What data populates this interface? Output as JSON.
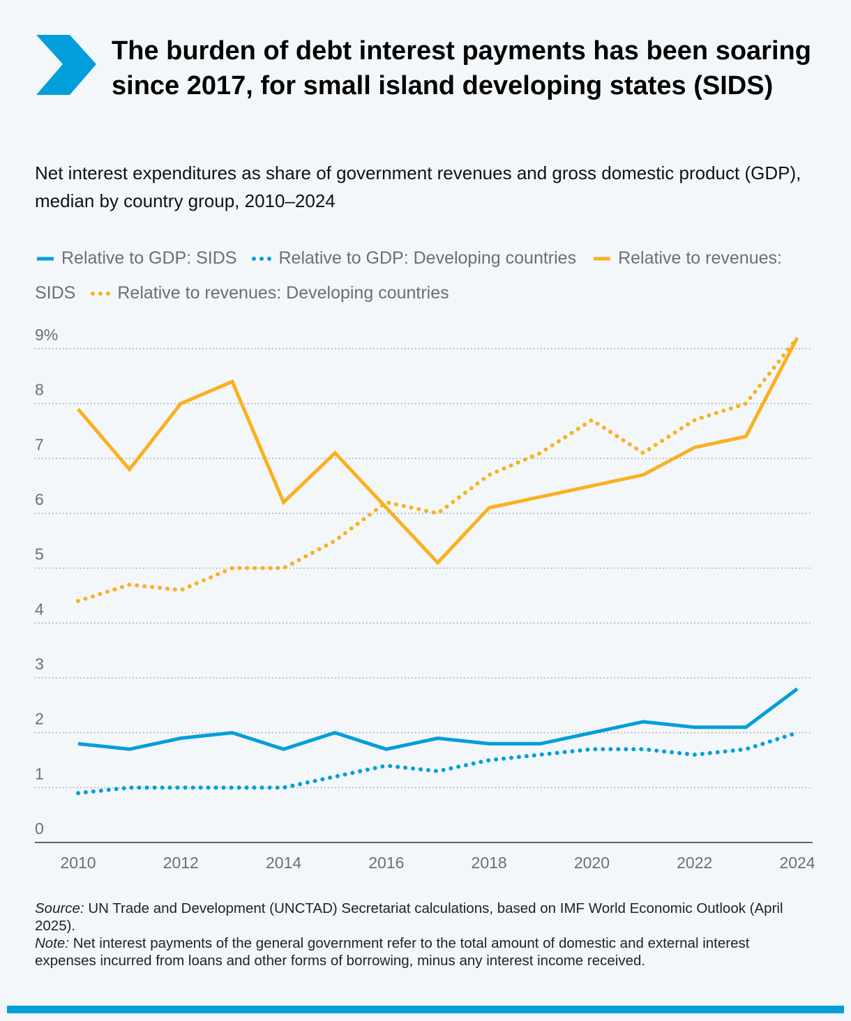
{
  "chart_data": {
    "type": "line",
    "title": "The burden of debt interest payments has been soaring since 2017, for small island developing states (SIDS)",
    "subtitle": "Net interest expenditures as share of government revenues and gross domestic product (GDP), median by country group, 2010–2024",
    "x": [
      2010,
      2011,
      2012,
      2013,
      2014,
      2015,
      2016,
      2017,
      2018,
      2019,
      2020,
      2021,
      2022,
      2023,
      2024
    ],
    "xlim": [
      2010,
      2024
    ],
    "xticks": [
      2010,
      2012,
      2014,
      2016,
      2018,
      2020,
      2022,
      2024
    ],
    "ylim": [
      0,
      9
    ],
    "yticks": [
      0,
      1,
      2,
      3,
      4,
      5,
      6,
      7,
      8,
      {
        "value": 9,
        "label": "9%"
      }
    ],
    "grid": true,
    "series": [
      {
        "name": "Relative to GDP: SIDS",
        "color": "#009edb",
        "style": "solid",
        "values": [
          1.8,
          1.7,
          1.9,
          2.0,
          1.7,
          2.0,
          1.7,
          1.9,
          1.8,
          1.8,
          2.0,
          2.2,
          2.1,
          2.1,
          2.8
        ]
      },
      {
        "name": "Relative to GDP: Developing countries",
        "color": "#009edb",
        "style": "dotted",
        "values": [
          0.9,
          1.0,
          1.0,
          1.0,
          1.0,
          1.2,
          1.4,
          1.3,
          1.5,
          1.6,
          1.7,
          1.7,
          1.6,
          1.7,
          2.0
        ]
      },
      {
        "name": "Relative to revenues: SIDS",
        "color": "#fbb01f",
        "style": "solid",
        "values": [
          7.9,
          6.8,
          8.0,
          8.4,
          6.2,
          7.1,
          6.1,
          5.1,
          6.1,
          6.3,
          6.5,
          6.7,
          7.2,
          7.4,
          9.2
        ]
      },
      {
        "name": "Relative to revenues: Developing countries",
        "color": "#fbb01f",
        "style": "dotted",
        "values": [
          4.4,
          4.7,
          4.6,
          5.0,
          5.0,
          5.5,
          6.2,
          6.0,
          6.7,
          7.1,
          7.7,
          7.1,
          7.7,
          8.0,
          9.2
        ]
      }
    ],
    "source_label": "Source:",
    "source_text": "UN Trade and Development (UNCTAD) Secretariat calculations, based on IMF World Economic Outlook (April 2025).",
    "note_label": "Note:",
    "note_text": "Net interest payments of the general government refer to the total amount of domestic and external interest expenses incurred from loans and other forms of borrowing, minus any interest income received."
  }
}
